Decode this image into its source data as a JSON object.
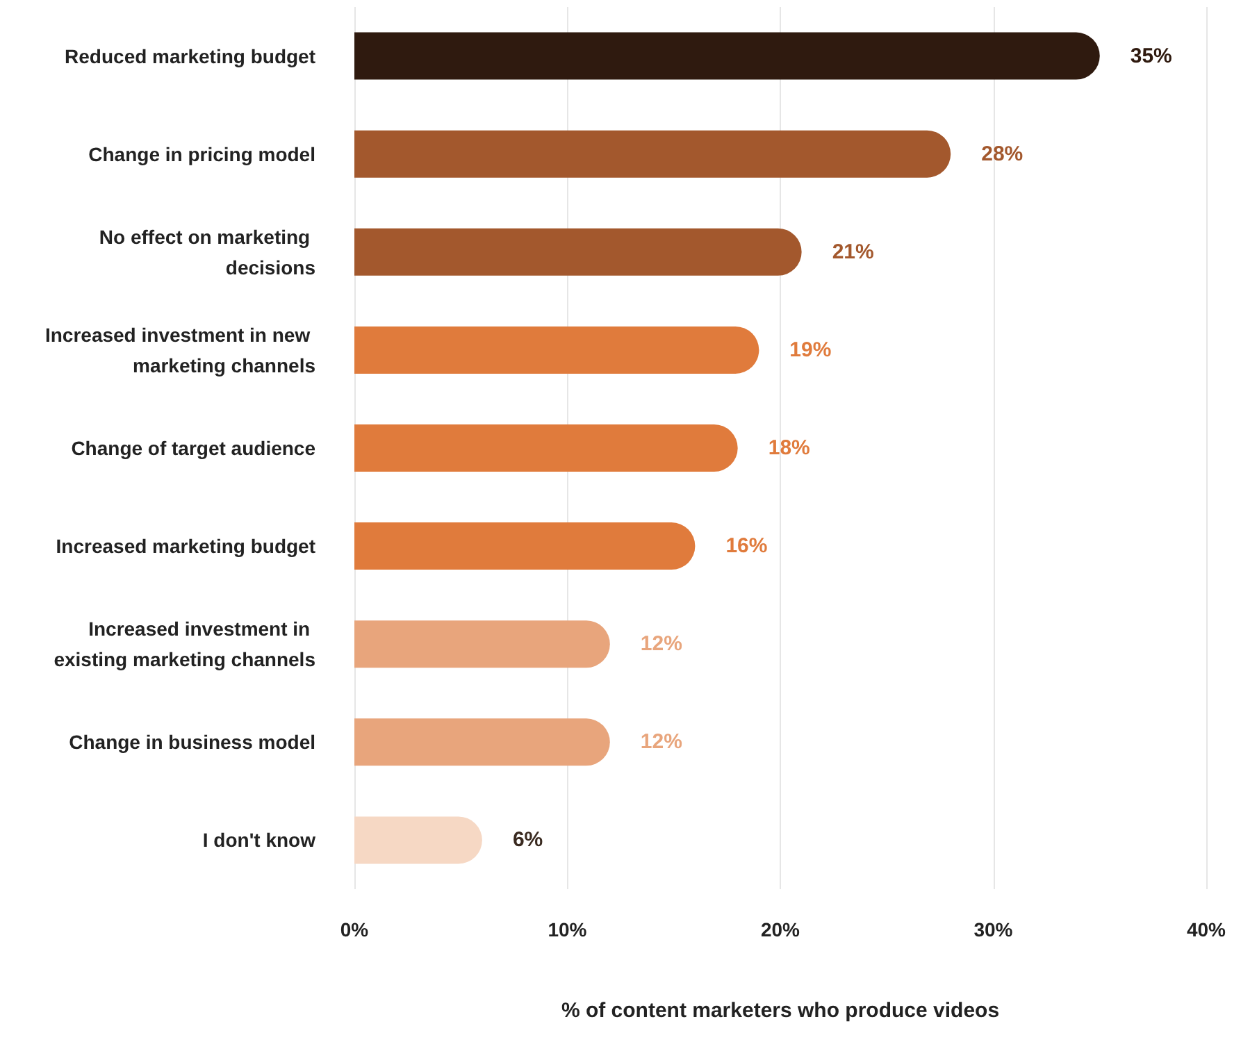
{
  "chart_data": {
    "type": "bar",
    "orientation": "horizontal",
    "xlabel": "% of content marketers who produce videos",
    "categories": [
      "Reduced marketing budget",
      "Change in pricing model",
      "No effect on marketing decisions",
      "Increased investment in new marketing channels",
      "Change of target audience",
      "Increased marketing budget",
      "Increased investment in existing marketing channels",
      "Change in business model",
      "I don't know"
    ],
    "values": [
      35,
      28,
      21,
      19,
      18,
      16,
      12,
      12,
      6
    ],
    "colors": [
      "#2f1a0f",
      "#a3582d",
      "#a3582d",
      "#e07b3c",
      "#e07b3c",
      "#e07b3c",
      "#e8a57c",
      "#e8a57c",
      "#f6d8c4"
    ],
    "value_labels": [
      "35%",
      "28%",
      "21%",
      "19%",
      "18%",
      "16%",
      "12%",
      "12%",
      "6%"
    ],
    "xlim": [
      0,
      40
    ],
    "xticks": [
      {
        "value": 0,
        "label": "0%"
      },
      {
        "value": 10,
        "label": "10%"
      },
      {
        "value": 20,
        "label": "20%"
      },
      {
        "value": 30,
        "label": "30%"
      },
      {
        "value": 40,
        "label": "40%"
      }
    ],
    "grid": "x"
  }
}
